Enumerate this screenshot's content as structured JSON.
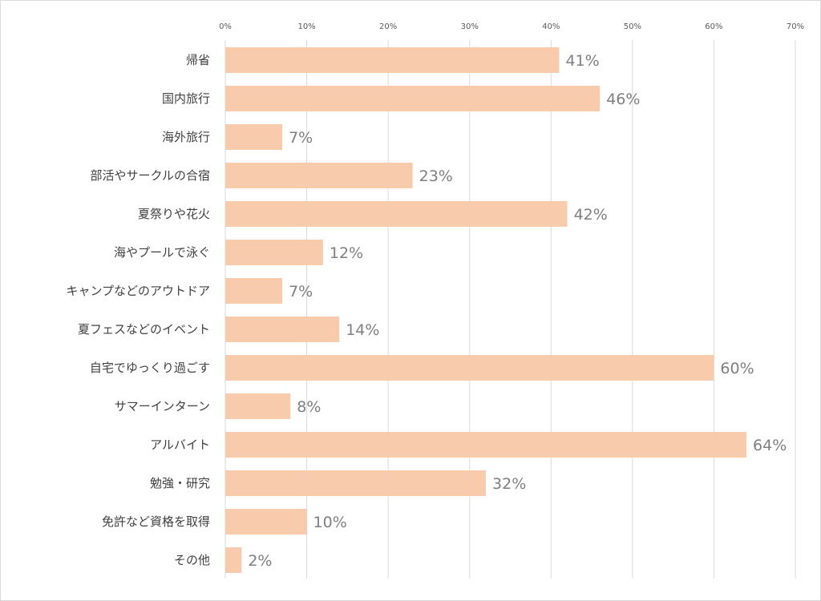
{
  "chart_data": {
    "type": "bar",
    "orientation": "horizontal",
    "title": "",
    "xlabel": "",
    "ylabel": "",
    "xlim": [
      0,
      70
    ],
    "x_ticks": [
      "0%",
      "10%",
      "20%",
      "30%",
      "40%",
      "50%",
      "60%",
      "70%"
    ],
    "x_tick_position": "top",
    "grid": true,
    "legend": "none",
    "bar_color": "#F8CBAD",
    "categories": [
      "帰省",
      "国内旅行",
      "海外旅行",
      "部活やサークルの合宿",
      "夏祭りや花火",
      "海やプールで泳ぐ",
      "キャンプなどのアウトドア",
      "夏フェスなどのイベント",
      "自宅でゆっくり過ごす",
      "サマーインターン",
      "アルバイト",
      "勉強・研究",
      "免許など資格を取得",
      "その他"
    ],
    "values": [
      41,
      46,
      7,
      23,
      42,
      12,
      7,
      14,
      60,
      8,
      64,
      32,
      10,
      2
    ],
    "data_labels": [
      "41%",
      "46%",
      "7%",
      "23%",
      "42%",
      "12%",
      "7%",
      "14%",
      "60%",
      "8%",
      "64%",
      "32%",
      "10%",
      "2%"
    ]
  }
}
